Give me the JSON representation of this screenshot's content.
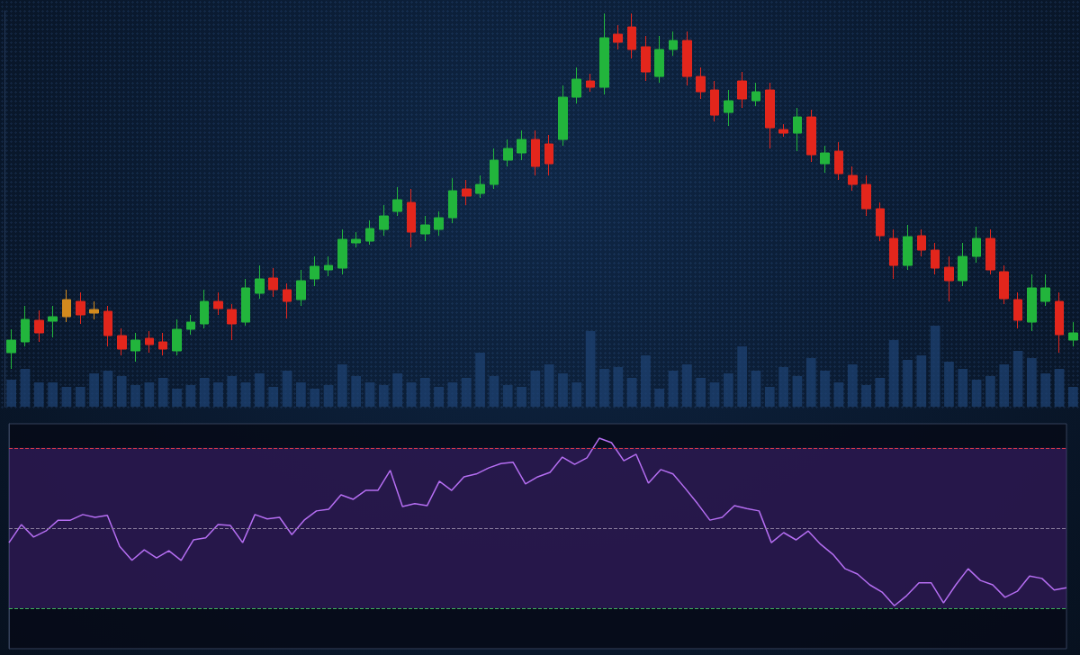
{
  "chart_data": [
    {
      "type": "candlestick",
      "categories": [
        null,
        null,
        null,
        null,
        null,
        null,
        null,
        null,
        null,
        null,
        null,
        null,
        null,
        null,
        null,
        null,
        null,
        null,
        null,
        null,
        null,
        null,
        null,
        null,
        null,
        null,
        null,
        null,
        null,
        null,
        null,
        null,
        null,
        null,
        null,
        null,
        null,
        null,
        null,
        null,
        null,
        null,
        null,
        null,
        null,
        null,
        null,
        null,
        null,
        null,
        null,
        null,
        null,
        null,
        null,
        null,
        null,
        null,
        null,
        null,
        null,
        null,
        null,
        null,
        null,
        null,
        null,
        null,
        null,
        null,
        null,
        null,
        null,
        null,
        null,
        null,
        null,
        null
      ],
      "values": [
        [
          15,
          18.5,
          10.5,
          21.5
        ],
        [
          18,
          24.25,
          16.75,
          28
        ],
        [
          24,
          20.5,
          18,
          26.75
        ],
        [
          23.75,
          25,
          19.25,
          28
        ],
        [
          25,
          29.75,
          23.5,
          32.5
        ],
        [
          29.25,
          25.5,
          23,
          31.75
        ],
        [
          27,
          26,
          24.25,
          29.25
        ],
        [
          26.5,
          19.75,
          16.75,
          28
        ],
        [
          19.75,
          16,
          14.25,
          21.75
        ],
        [
          15.5,
          18.5,
          12.5,
          20.5
        ],
        [
          19,
          17.25,
          15,
          21
        ],
        [
          18,
          16,
          14.25,
          20.5
        ],
        [
          15.5,
          21.5,
          14.25,
          24.25
        ],
        [
          21.5,
          23.5,
          20,
          25.5
        ],
        [
          23,
          29.25,
          21.75,
          32.5
        ],
        [
          29.25,
          27.25,
          25.5,
          31.75
        ],
        [
          27,
          23,
          18.5,
          28.5
        ],
        [
          23.5,
          33,
          22.5,
          35.5
        ],
        [
          31.5,
          35.5,
          30,
          39.25
        ],
        [
          35.75,
          32.5,
          30.5,
          38.5
        ],
        [
          32.5,
          29.25,
          24.5,
          34.25
        ],
        [
          29.75,
          35,
          28,
          38
        ],
        [
          35.5,
          39,
          33.5,
          41.75
        ],
        [
          38,
          39.25,
          36.25,
          41.75
        ],
        [
          38.5,
          46.5,
          36.75,
          49.25
        ],
        [
          45.5,
          46.5,
          44.25,
          48.5
        ],
        [
          46,
          49.5,
          45,
          51.75
        ],
        [
          49.25,
          53,
          47.5,
          56
        ],
        [
          54.25,
          57.5,
          53,
          61
        ],
        [
          56.75,
          48.5,
          44.25,
          60.5
        ],
        [
          48,
          50.5,
          46,
          53
        ],
        [
          49.25,
          52.5,
          47.5,
          54.25
        ],
        [
          52.5,
          60,
          51,
          63.5
        ],
        [
          60.5,
          58.5,
          56,
          63
        ],
        [
          59.25,
          61.75,
          58,
          64.25
        ],
        [
          61.75,
          68.5,
          60.5,
          71.75
        ],
        [
          68.5,
          71.75,
          66.75,
          74.25
        ],
        [
          70.5,
          74.25,
          68.5,
          76.75
        ],
        [
          74.25,
          66.75,
          64.25,
          76.75
        ],
        [
          73,
          67.5,
          64.25,
          75.5
        ],
        [
          74.25,
          86,
          72.5,
          89.25
        ],
        [
          86,
          91,
          84.25,
          94.25
        ],
        [
          90.5,
          88.75,
          87.5,
          92.5
        ],
        [
          88.75,
          102.5,
          86.75,
          109.25
        ],
        [
          103.5,
          101.25,
          99.25,
          106
        ],
        [
          105.5,
          99.25,
          96.75,
          109.25
        ],
        [
          100,
          93,
          90.5,
          103
        ],
        [
          91.75,
          99.25,
          90,
          103
        ],
        [
          99.25,
          101.75,
          97.5,
          104.25
        ],
        [
          101.75,
          91.75,
          89.25,
          104.25
        ],
        [
          91.75,
          87.5,
          85.5,
          94.25
        ],
        [
          88,
          81,
          79.25,
          90.5
        ],
        [
          81.75,
          85,
          78,
          88
        ],
        [
          90.5,
          85.5,
          83,
          93
        ],
        [
          85,
          87.5,
          83.5,
          90
        ],
        [
          88,
          77.5,
          71.75,
          90
        ],
        [
          77,
          76,
          75,
          78.5
        ],
        [
          76,
          80.5,
          71,
          83
        ],
        [
          80.5,
          70,
          68,
          82.5
        ],
        [
          67.5,
          70.5,
          65,
          72.5
        ],
        [
          71,
          64.75,
          63,
          73.5
        ],
        [
          64.25,
          61.75,
          60,
          66.75
        ],
        [
          61.75,
          55,
          53,
          64.25
        ],
        [
          55,
          47.5,
          46,
          56.75
        ],
        [
          46.75,
          39.25,
          35.5,
          49.25
        ],
        [
          39.25,
          47.25,
          38,
          50.5
        ],
        [
          47.5,
          43.5,
          41.75,
          49.25
        ],
        [
          43.5,
          38.5,
          36.75,
          45.5
        ],
        [
          38.75,
          35,
          29.25,
          41.75
        ],
        [
          35,
          41.75,
          33.5,
          45.5
        ],
        [
          41.75,
          46.75,
          40,
          50
        ],
        [
          46.75,
          38,
          36.75,
          49.25
        ],
        [
          37.5,
          30,
          28.5,
          39.25
        ],
        [
          29.75,
          24,
          21.75,
          31.75
        ],
        [
          23.5,
          33,
          21,
          36.75
        ],
        [
          29.25,
          33,
          28,
          36.75
        ],
        [
          29.25,
          20,
          15,
          31.75
        ],
        [
          18.5,
          20.5,
          16.75,
          23.5
        ]
      ],
      "colors": [
        "#22b53c",
        "#22b53c",
        "#e3261c",
        "#22b53c",
        "#d28a1e",
        "#e3261c",
        "#d28a1e",
        "#e3261c",
        "#e3261c",
        "#22b53c",
        "#e3261c",
        "#e3261c",
        "#22b53c",
        "#22b53c",
        "#22b53c",
        "#e3261c",
        "#e3261c",
        "#22b53c",
        "#22b53c",
        "#e3261c",
        "#e3261c",
        "#22b53c",
        "#22b53c",
        "#22b53c",
        "#22b53c",
        "#22b53c",
        "#22b53c",
        "#22b53c",
        "#22b53c",
        "#e3261c",
        "#22b53c",
        "#22b53c",
        "#22b53c",
        "#e3261c",
        "#22b53c",
        "#22b53c",
        "#22b53c",
        "#22b53c",
        "#e3261c",
        "#e3261c",
        "#22b53c",
        "#22b53c",
        "#e3261c",
        "#22b53c",
        "#e3261c",
        "#e3261c",
        "#e3261c",
        "#22b53c",
        "#22b53c",
        "#e3261c",
        "#e3261c",
        "#e3261c",
        "#22b53c",
        "#e3261c",
        "#22b53c",
        "#e3261c",
        "#e3261c",
        "#22b53c",
        "#e3261c",
        "#22b53c",
        "#e3261c",
        "#e3261c",
        "#e3261c",
        "#e3261c",
        "#e3261c",
        "#22b53c",
        "#e3261c",
        "#e3261c",
        "#e3261c",
        "#22b53c",
        "#22b53c",
        "#e3261c",
        "#e3261c",
        "#e3261c",
        "#22b53c",
        "#22b53c",
        "#e3261c",
        "#22b53c"
      ],
      "ylim": [
        0,
        110
      ],
      "yticks": [],
      "tick_labels": false,
      "grid": false
    },
    {
      "type": "bar",
      "categories": [
        null,
        null,
        null,
        null,
        null,
        null,
        null,
        null,
        null,
        null,
        null,
        null,
        null,
        null,
        null,
        null,
        null,
        null,
        null,
        null,
        null,
        null,
        null,
        null,
        null,
        null,
        null,
        null,
        null,
        null,
        null,
        null,
        null,
        null,
        null,
        null,
        null,
        null,
        null,
        null,
        null,
        null,
        null,
        null,
        null,
        null,
        null,
        null,
        null,
        null,
        null,
        null,
        null,
        null,
        null,
        null,
        null,
        null,
        null,
        null,
        null,
        null,
        null,
        null,
        null,
        null,
        null,
        null,
        null,
        null,
        null,
        null,
        null,
        null,
        null,
        null,
        null,
        null
      ],
      "values": [
        30,
        42,
        27,
        27,
        22,
        22,
        37,
        40,
        34,
        24,
        27,
        32,
        20,
        24,
        32,
        27,
        34,
        27,
        37,
        22,
        40,
        27,
        20,
        24,
        47,
        34,
        27,
        24,
        37,
        27,
        32,
        22,
        27,
        32,
        60,
        34,
        24,
        22,
        40,
        47,
        37,
        27,
        84,
        42,
        44,
        32,
        57,
        20,
        40,
        47,
        32,
        27,
        37,
        67,
        40,
        22,
        44,
        34,
        54,
        40,
        27,
        47,
        24,
        32,
        74,
        52,
        57,
        90,
        50,
        42,
        30,
        34,
        47,
        62,
        54,
        37,
        42,
        22
      ],
      "color": "#1d4272",
      "ylim": [
        0,
        100
      ],
      "yticks": [],
      "tick_labels": false,
      "grid": false
    },
    {
      "type": "line",
      "categories": [
        null,
        null,
        null,
        null,
        null,
        null,
        null,
        null,
        null,
        null,
        null,
        null,
        null,
        null,
        null,
        null,
        null,
        null,
        null,
        null,
        null,
        null,
        null,
        null,
        null,
        null,
        null,
        null,
        null,
        null,
        null,
        null,
        null,
        null,
        null,
        null,
        null,
        null,
        null,
        null,
        null,
        null,
        null,
        null,
        null,
        null,
        null,
        null,
        null,
        null,
        null,
        null,
        null,
        null,
        null,
        null,
        null,
        null,
        null,
        null,
        null,
        null,
        null,
        null,
        null,
        null,
        null,
        null,
        null,
        null,
        null,
        null,
        null,
        null,
        null,
        null,
        null,
        null,
        null,
        null,
        null,
        null,
        null,
        null,
        null,
        null,
        null
      ],
      "values": [
        46.4,
        50.9,
        47.8,
        49.3,
        52.0,
        52.0,
        53.4,
        52.7,
        53.2,
        45.5,
        42.0,
        44.6,
        42.6,
        44.4,
        42.0,
        47.1,
        47.6,
        50.9,
        50.7,
        46.4,
        53.4,
        52.3,
        52.7,
        48.4,
        52.0,
        54.3,
        54.7,
        58.3,
        57.2,
        59.4,
        59.4,
        64.4,
        55.4,
        56.1,
        55.6,
        61.7,
        59.4,
        62.8,
        63.5,
        65.0,
        66.1,
        66.4,
        61.0,
        62.8,
        63.9,
        67.7,
        65.9,
        67.5,
        72.4,
        71.3,
        66.8,
        68.4,
        61.2,
        64.6,
        63.5,
        59.9,
        56.1,
        52.0,
        52.7,
        55.6,
        54.9,
        54.3,
        46.4,
        48.9,
        47.1,
        49.3,
        46.0,
        43.5,
        39.9,
        38.6,
        35.9,
        34.1,
        30.7,
        33.2,
        36.4,
        36.4,
        31.4,
        35.9,
        39.9,
        37.0,
        35.9,
        32.8,
        34.3,
        38.1,
        37.5,
        34.6,
        35.2
      ],
      "color": "#b56ef2",
      "hlines": [
        {
          "value": 70,
          "color": "#d2384a",
          "line_style": "dashed"
        },
        {
          "value": 50,
          "color": "#8a7d9c",
          "line_style": "dashed"
        },
        {
          "value": 30,
          "color": "#3fae5a",
          "line_style": "dashed"
        }
      ],
      "ylim": [
        20,
        76
      ],
      "yticks": [],
      "tick_labels": false,
      "grid": false
    }
  ]
}
